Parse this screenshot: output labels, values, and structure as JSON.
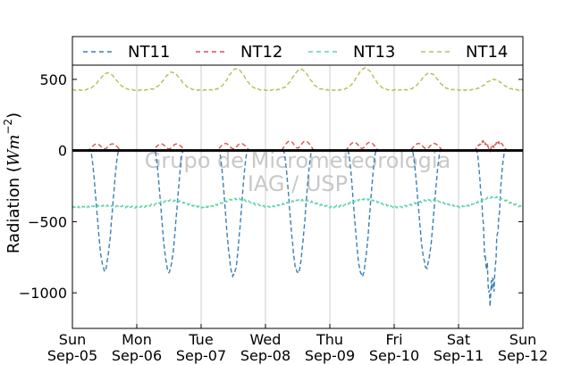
{
  "chart_data": {
    "type": "line",
    "ylabel_text": "Radiation (",
    "ylabel_math": "Wm",
    "ylabel_exp": "−2",
    "ylabel_close": ")",
    "ylim": [
      -1250,
      600
    ],
    "yticks": [
      500,
      0,
      -500,
      -1000
    ],
    "ytick_labels": [
      "500",
      "0",
      "−500",
      "−1000"
    ],
    "xlim": [
      "2010-09-05",
      "2010-09-12"
    ],
    "xtick_labels": [
      {
        "day": "Sun",
        "date": "Sep-05"
      },
      {
        "day": "Mon",
        "date": "Sep-06"
      },
      {
        "day": "Tue",
        "date": "Sep-07"
      },
      {
        "day": "Wed",
        "date": "Sep-08"
      },
      {
        "day": "Thu",
        "date": "Sep-09"
      },
      {
        "day": "Fri",
        "date": "Sep-10"
      },
      {
        "day": "Sat",
        "date": "Sep-11"
      },
      {
        "day": "Sun",
        "date": "Sep-12"
      }
    ],
    "grid": "vertical at day boundaries",
    "zero_line": true,
    "legend_position": "top, above plot",
    "watermark": [
      "Grupo de Micrometeorologia",
      "IAG / USP"
    ],
    "daily_peaks": [
      {
        "day": "Sep-05",
        "NT11": -840,
        "NT12": 80,
        "NT13": -390,
        "NT14": 545
      },
      {
        "day": "Sep-06",
        "NT11": -850,
        "NT12": 80,
        "NT13": -350,
        "NT14": 550
      },
      {
        "day": "Sep-07",
        "NT11": -880,
        "NT12": 85,
        "NT13": -340,
        "NT14": 575
      },
      {
        "day": "Sep-08",
        "NT11": -860,
        "NT12": 115,
        "NT13": -350,
        "NT14": 570
      },
      {
        "day": "Sep-09",
        "NT11": -880,
        "NT12": 100,
        "NT13": -340,
        "NT14": 580
      },
      {
        "day": "Sep-10",
        "NT11": -820,
        "NT12": 85,
        "NT13": -350,
        "NT14": 545
      },
      {
        "day": "Sep-11",
        "NT11": -1000,
        "NT12": 100,
        "NT13": -330,
        "NT14": 500
      }
    ],
    "series": [
      {
        "name": "NT11",
        "color": "#3a7fb8"
      },
      {
        "name": "NT12",
        "color": "#d9534f"
      },
      {
        "name": "NT13",
        "color": "#5fd3a8"
      },
      {
        "name": "NT14",
        "color": "#bcbd5e"
      }
    ]
  }
}
